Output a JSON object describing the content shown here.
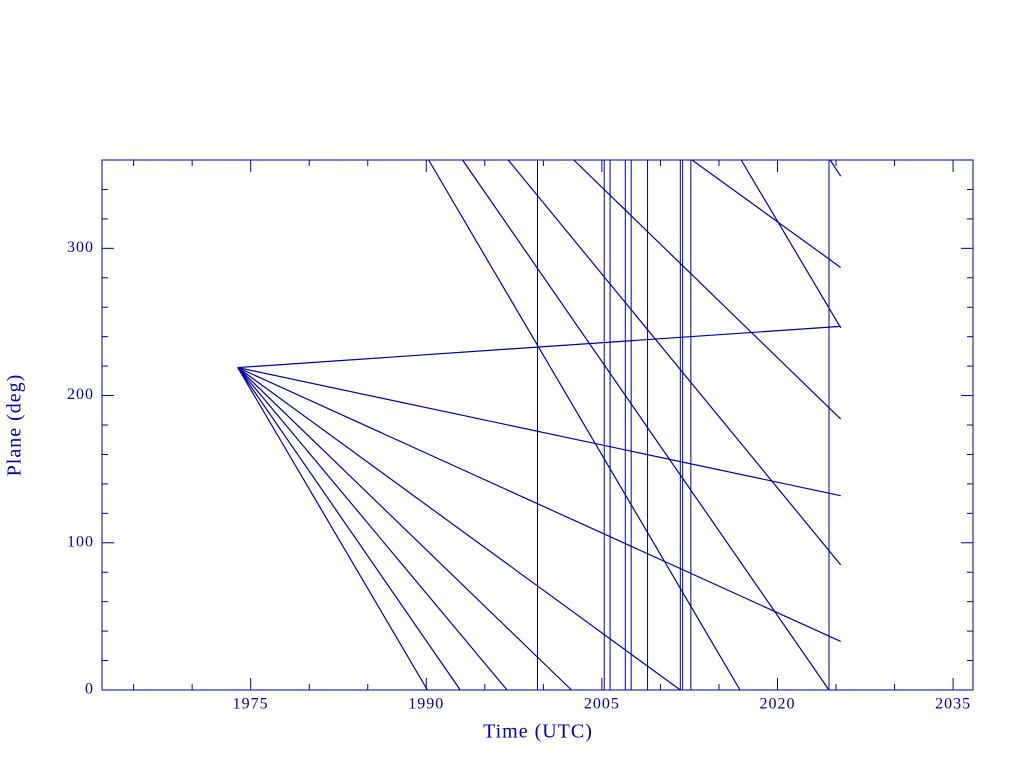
{
  "chart_data": {
    "type": "line",
    "xlabel": "Time (UTC)",
    "ylabel": "Plane (deg)",
    "xlim": [
      1962.3,
      2036.7
    ],
    "ylim": [
      0,
      360
    ],
    "xticks": [
      1975,
      1990,
      2005,
      2020,
      2035
    ],
    "xminorticks": [
      1965,
      1970,
      1980,
      1985,
      1995,
      2000,
      2010,
      2015,
      2025,
      2030
    ],
    "yticks": [
      0,
      100,
      200,
      300
    ],
    "yminorticks": [
      20,
      40,
      60,
      80,
      120,
      140,
      160,
      180,
      220,
      240,
      260,
      280,
      320,
      340,
      360
    ],
    "color": "#0000a0",
    "series": [
      {
        "x": [
          1973.9,
          2025.4
        ],
        "values": [
          219,
          247
        ]
      },
      {
        "x": [
          1973.9,
          2025.4
        ],
        "values": [
          219,
          132
        ]
      },
      {
        "x": [
          1973.9,
          2025.4
        ],
        "values": [
          219,
          33
        ]
      },
      {
        "x": [
          1973.9,
          2011.7,
          null,
          2012.7,
          2025.4
        ],
        "values": [
          219,
          0,
          null,
          360,
          287
        ]
      },
      {
        "x": [
          1973.9,
          2002.4,
          null,
          2002.6,
          2025.4
        ],
        "values": [
          219,
          0,
          null,
          360,
          184
        ]
      },
      {
        "x": [
          1973.9,
          1996.9,
          null,
          1997.0,
          2025.4
        ],
        "values": [
          219,
          0,
          null,
          360,
          85
        ]
      },
      {
        "x": [
          1973.9,
          1992.9,
          null,
          1993.1,
          2024.4,
          null,
          2024.5,
          2025.4
        ],
        "values": [
          219,
          0,
          null,
          360,
          0,
          null,
          360,
          349
        ]
      },
      {
        "x": [
          1973.9,
          1990.1,
          null,
          1990.2,
          2016.8,
          null,
          2016.9,
          2025.4
        ],
        "values": [
          219,
          0,
          null,
          360,
          0,
          null,
          360,
          246
        ]
      }
    ],
    "vertical_lines": [
      1999.5,
      2005.2,
      2005.7,
      2007.0,
      2007.5,
      2008.9,
      2011.7,
      2011.9,
      2012.6,
      2024.4
    ]
  }
}
